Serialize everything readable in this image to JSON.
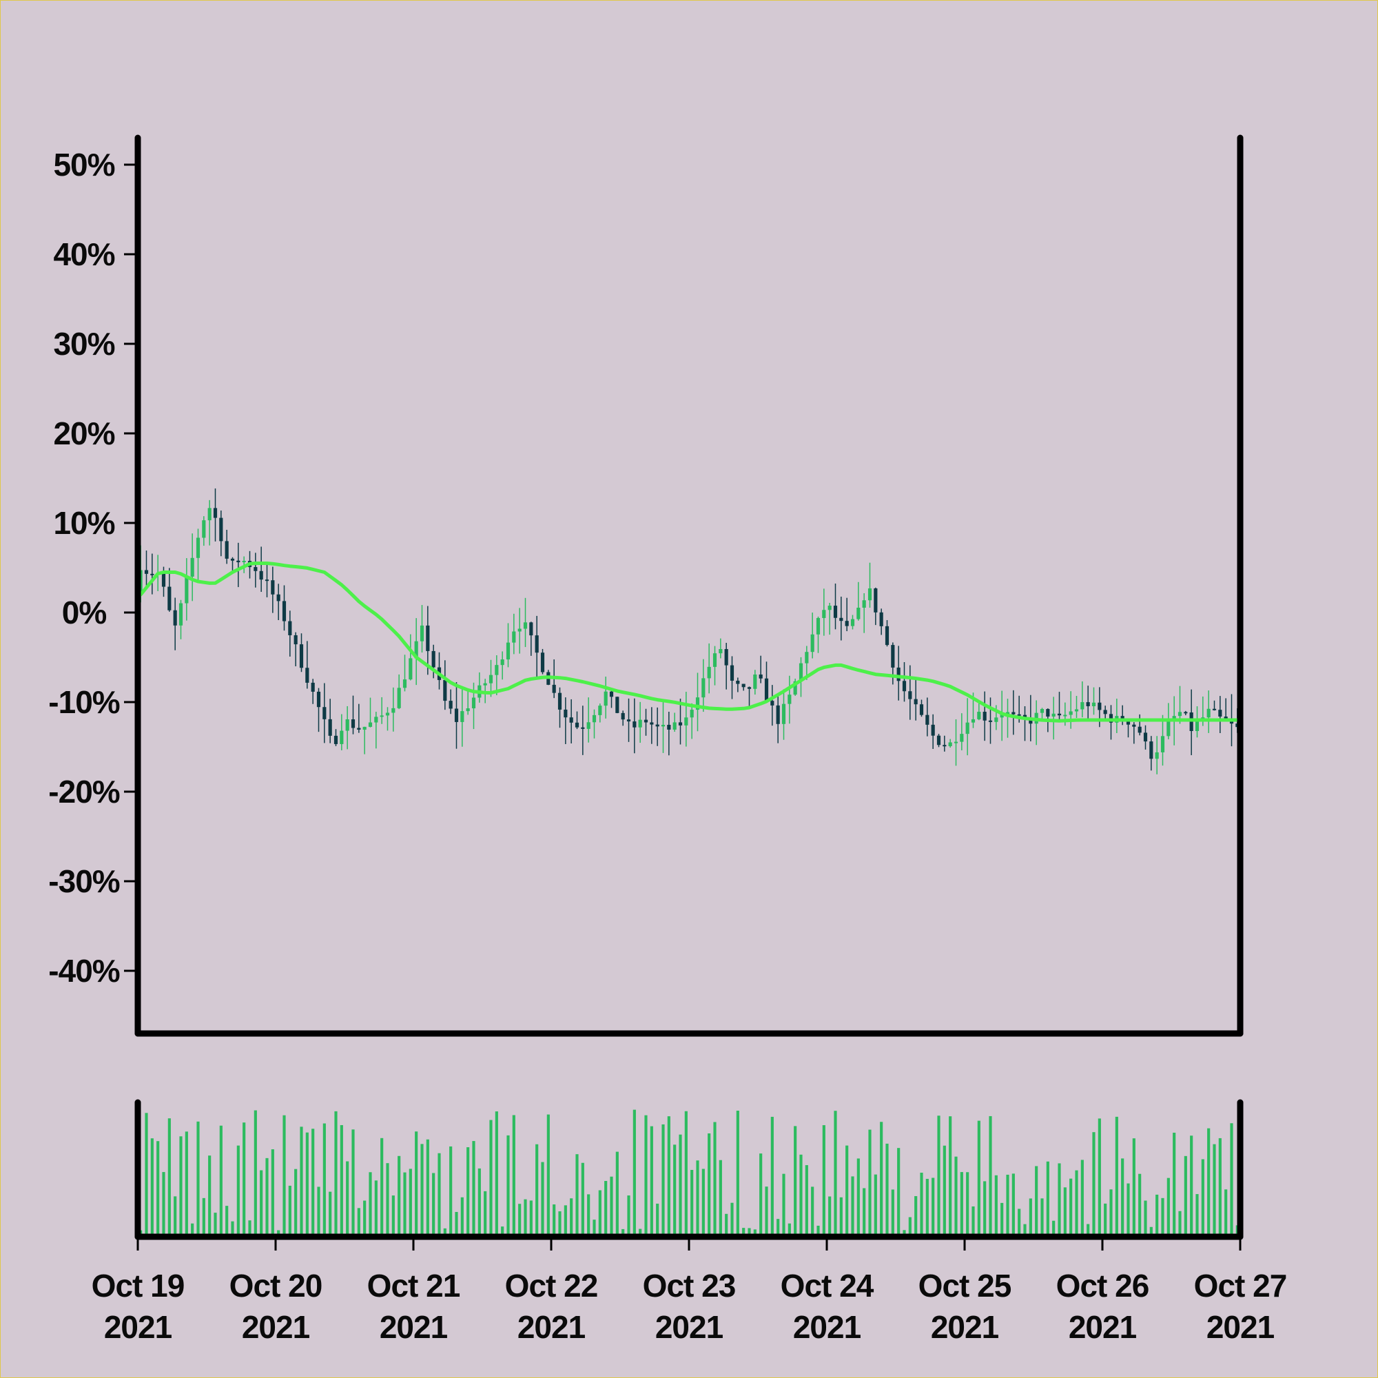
{
  "chart_data": {
    "type": "candlestick",
    "y_axis": {
      "ticks": [
        "50%",
        "40%",
        "30%",
        "20%",
        "10%",
        "0%",
        "-10%",
        "-20%",
        "-30%",
        "-40%"
      ],
      "tick_values": [
        50,
        40,
        30,
        20,
        10,
        0,
        -10,
        -20,
        -30,
        -40
      ],
      "range": [
        -47,
        53
      ],
      "unit": "percent"
    },
    "x_axis": {
      "ticks": [
        {
          "line1": "Oct 19",
          "line2": "2021"
        },
        {
          "line1": "Oct 20",
          "line2": "2021"
        },
        {
          "line1": "Oct 21",
          "line2": "2021"
        },
        {
          "line1": "Oct 22",
          "line2": "2021"
        },
        {
          "line1": "Oct 23",
          "line2": "2021"
        },
        {
          "line1": "Oct 24",
          "line2": "2021"
        },
        {
          "line1": "Oct 25",
          "line2": "2021"
        },
        {
          "line1": "Oct 26",
          "line2": "2021"
        },
        {
          "line1": "Oct 27",
          "line2": "2021"
        }
      ],
      "range": [
        "2021-10-19",
        "2021-10-27"
      ]
    },
    "candles_per_day": 24,
    "price_close_path": [
      [
        0,
        2
      ],
      [
        0.3,
        6
      ],
      [
        0.6,
        4
      ],
      [
        0.9,
        5
      ],
      [
        1.2,
        3
      ],
      [
        1.5,
        0
      ],
      [
        1.8,
        -2
      ],
      [
        2.1,
        2
      ],
      [
        2.5,
        6
      ],
      [
        2.9,
        10
      ],
      [
        3.3,
        12
      ],
      [
        3.7,
        9
      ],
      [
        4.1,
        5
      ],
      [
        4.6,
        6
      ],
      [
        5.2,
        5
      ],
      [
        5.8,
        3
      ],
      [
        6.4,
        0
      ],
      [
        7.0,
        -4
      ],
      [
        7.6,
        -8
      ],
      [
        8.2,
        -12
      ],
      [
        8.6,
        -15
      ],
      [
        9.1,
        -12
      ],
      [
        9.8,
        -13
      ],
      [
        10.6,
        -12
      ],
      [
        11.3,
        -10
      ],
      [
        11.9,
        -6
      ],
      [
        12.5,
        -2
      ],
      [
        13.0,
        -6
      ],
      [
        13.5,
        -10
      ],
      [
        14.0,
        -12
      ],
      [
        14.6,
        -10
      ],
      [
        15.2,
        -8
      ],
      [
        15.8,
        -6
      ],
      [
        16.4,
        -2
      ],
      [
        16.9,
        -1
      ],
      [
        17.4,
        -4
      ],
      [
        17.9,
        -7
      ],
      [
        18.4,
        -10
      ],
      [
        18.9,
        -12
      ],
      [
        19.4,
        -13
      ],
      [
        20.0,
        -11
      ],
      [
        20.5,
        -9
      ],
      [
        21.0,
        -11
      ],
      [
        21.6,
        -13
      ],
      [
        22.2,
        -12
      ],
      [
        22.8,
        -13
      ],
      [
        23.4,
        -13
      ],
      [
        24.0,
        -12
      ],
      [
        24.5,
        -9
      ],
      [
        25.0,
        -6
      ],
      [
        25.5,
        -4
      ],
      [
        26.0,
        -8
      ],
      [
        26.6,
        -9
      ],
      [
        27.1,
        -7
      ],
      [
        27.6,
        -10
      ],
      [
        28.0,
        -12
      ],
      [
        28.6,
        -9
      ],
      [
        29.1,
        -5
      ],
      [
        29.6,
        -2
      ],
      [
        30.1,
        1
      ],
      [
        30.6,
        -1
      ],
      [
        31.0,
        -2
      ],
      [
        31.5,
        0
      ],
      [
        31.9,
        3
      ],
      [
        32.3,
        0
      ],
      [
        32.8,
        -4
      ],
      [
        33.3,
        -8
      ],
      [
        33.8,
        -10
      ],
      [
        34.3,
        -12
      ],
      [
        34.8,
        -14
      ],
      [
        35.4,
        -15
      ],
      [
        36.0,
        -13
      ],
      [
        36.6,
        -11
      ],
      [
        37.2,
        -12
      ],
      [
        37.8,
        -11
      ],
      [
        38.4,
        -12
      ],
      [
        39.0,
        -12
      ],
      [
        39.6,
        -11
      ],
      [
        40.2,
        -12
      ],
      [
        40.8,
        -11
      ],
      [
        41.4,
        -10
      ],
      [
        42.0,
        -11
      ],
      [
        42.6,
        -12
      ],
      [
        43.2,
        -12
      ],
      [
        43.7,
        -13
      ],
      [
        44.2,
        -16
      ],
      [
        44.6,
        -15
      ],
      [
        45.1,
        -12
      ],
      [
        45.6,
        -11
      ],
      [
        46.0,
        -13
      ],
      [
        46.4,
        -12
      ],
      [
        46.8,
        -11
      ],
      [
        47.3,
        -12
      ],
      [
        48,
        -13
      ]
    ],
    "moving_average": [
      [
        0,
        2
      ],
      [
        0.8,
        4.5
      ],
      [
        1.6,
        4.5
      ],
      [
        2.4,
        3.5
      ],
      [
        3.2,
        3.2
      ],
      [
        4.0,
        4.5
      ],
      [
        4.8,
        5.5
      ],
      [
        5.6,
        5.5
      ],
      [
        6.4,
        5.2
      ],
      [
        7.2,
        5.0
      ],
      [
        8.0,
        4.5
      ],
      [
        8.8,
        3.0
      ],
      [
        9.6,
        1.0
      ],
      [
        10.4,
        -0.5
      ],
      [
        11.2,
        -2.5
      ],
      [
        12.0,
        -5.0
      ],
      [
        12.8,
        -6.5
      ],
      [
        13.6,
        -8.0
      ],
      [
        14.4,
        -8.8
      ],
      [
        15.2,
        -9.0
      ],
      [
        16.0,
        -8.5
      ],
      [
        16.8,
        -7.5
      ],
      [
        17.6,
        -7.2
      ],
      [
        18.4,
        -7.3
      ],
      [
        19.2,
        -7.7
      ],
      [
        20.0,
        -8.2
      ],
      [
        20.8,
        -8.8
      ],
      [
        21.6,
        -9.2
      ],
      [
        22.4,
        -9.7
      ],
      [
        23.2,
        -10.0
      ],
      [
        24.0,
        -10.4
      ],
      [
        24.8,
        -10.7
      ],
      [
        25.6,
        -10.8
      ],
      [
        26.4,
        -10.7
      ],
      [
        27.2,
        -10.0
      ],
      [
        28.0,
        -8.8
      ],
      [
        28.8,
        -7.5
      ],
      [
        29.6,
        -6.2
      ],
      [
        30.4,
        -5.8
      ],
      [
        31.2,
        -6.4
      ],
      [
        32.0,
        -6.9
      ],
      [
        32.8,
        -7.1
      ],
      [
        33.6,
        -7.3
      ],
      [
        34.4,
        -7.6
      ],
      [
        35.2,
        -8.2
      ],
      [
        36.0,
        -9.2
      ],
      [
        36.8,
        -10.4
      ],
      [
        37.6,
        -11.4
      ],
      [
        38.4,
        -11.8
      ],
      [
        39.2,
        -12.0
      ],
      [
        40.0,
        -12.1
      ],
      [
        40.8,
        -12.0
      ],
      [
        48,
        -12.0
      ]
    ],
    "volume": "relative bar heights per candle, 0..1",
    "colors": {
      "background": "#d4c9d3",
      "up_candle": "#2cbb5f",
      "down_candle": "#0e3a45",
      "moving_average": "#4df04a",
      "volume_bar": "#2cbb5f",
      "axis": "#000000"
    }
  }
}
